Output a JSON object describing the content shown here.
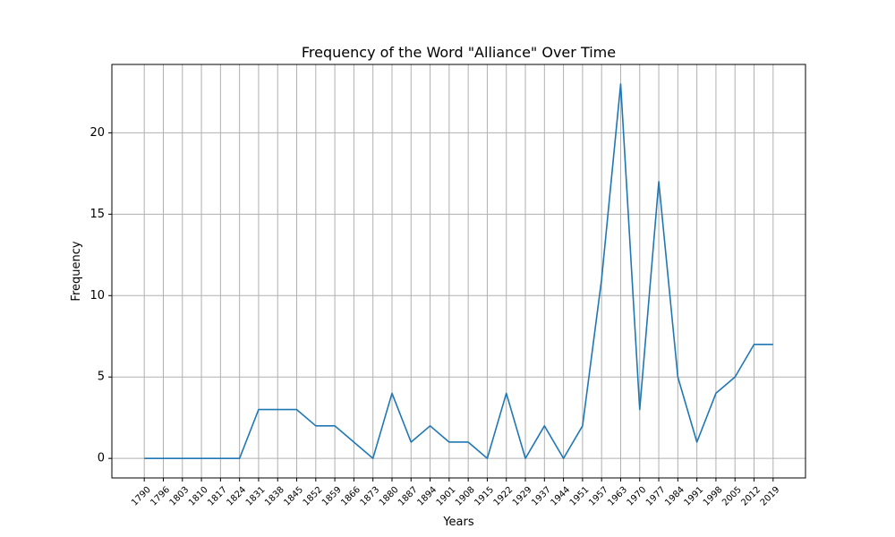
{
  "chart_data": {
    "type": "line",
    "title": "Frequency of the Word \"Alliance\" Over Time",
    "xlabel": "Years",
    "ylabel": "Frequency",
    "ylim": [
      -1.2,
      24.2
    ],
    "yticks": [
      0,
      5,
      10,
      15,
      20
    ],
    "grid": true,
    "x": [
      1790,
      1796,
      1803,
      1810,
      1817,
      1824,
      1831,
      1838,
      1845,
      1852,
      1859,
      1866,
      1873,
      1880,
      1887,
      1894,
      1901,
      1908,
      1915,
      1922,
      1929,
      1937,
      1944,
      1951,
      1957,
      1963,
      1970,
      1977,
      1984,
      1991,
      1998,
      2005,
      2012,
      2019
    ],
    "series": [
      {
        "color": "#1f77b4",
        "values": [
          0,
          0,
          0,
          0,
          0,
          0,
          3,
          3,
          3,
          2,
          2,
          1,
          0,
          4,
          1,
          2,
          1,
          1,
          0,
          4,
          0,
          2,
          0,
          2,
          11,
          23,
          3,
          17,
          5,
          1,
          4,
          5,
          7,
          7
        ]
      }
    ]
  }
}
